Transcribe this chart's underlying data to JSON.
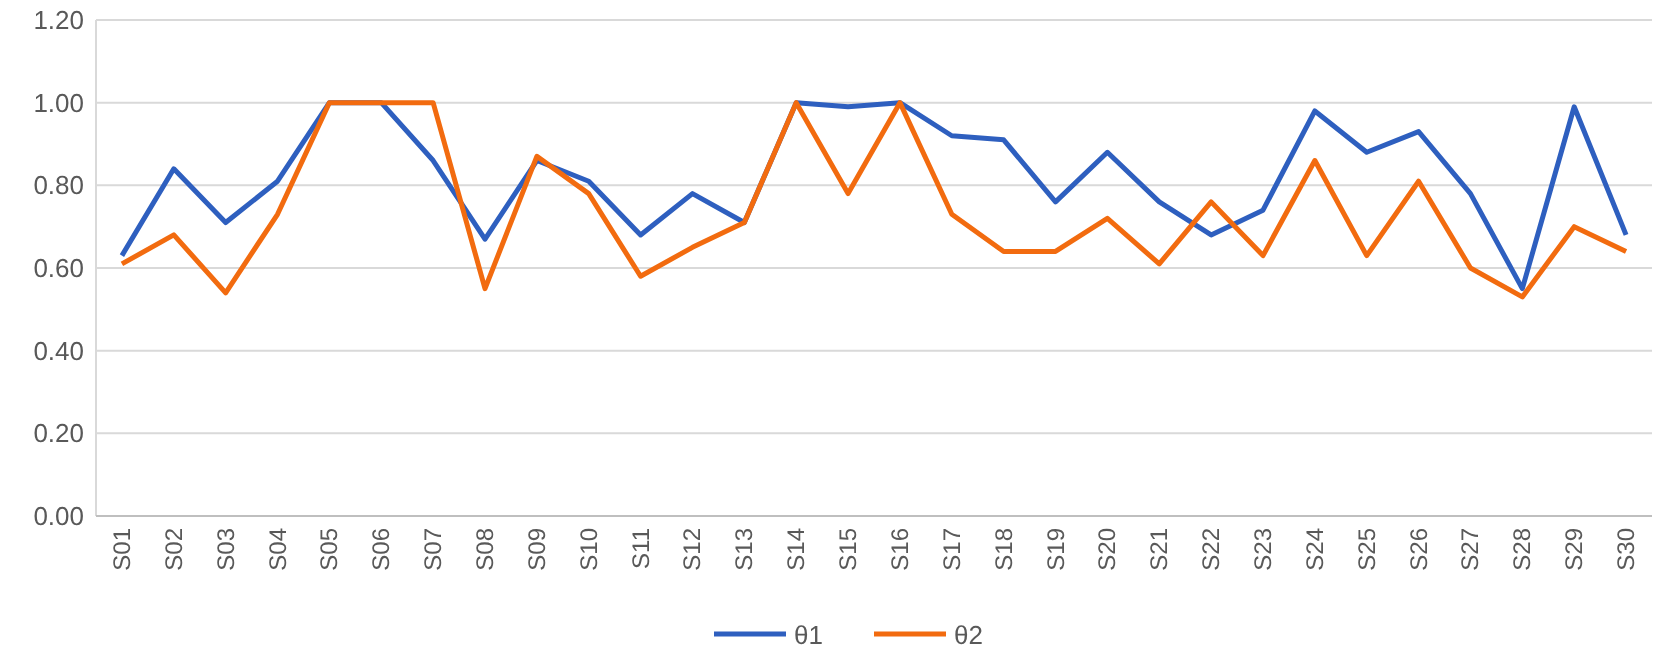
{
  "chart_data": {
    "type": "line",
    "categories": [
      "S01",
      "S02",
      "S03",
      "S04",
      "S05",
      "S06",
      "S07",
      "S08",
      "S09",
      "S10",
      "S11",
      "S12",
      "S13",
      "S14",
      "S15",
      "S16",
      "S17",
      "S18",
      "S19",
      "S20",
      "S21",
      "S22",
      "S23",
      "S24",
      "S25",
      "S26",
      "S27",
      "S28",
      "S29",
      "S30"
    ],
    "series": [
      {
        "name": "θ1",
        "color": "#2e5fbf",
        "values": [
          0.63,
          0.84,
          0.71,
          0.81,
          1.0,
          1.0,
          0.86,
          0.67,
          0.86,
          0.81,
          0.68,
          0.78,
          0.71,
          1.0,
          0.99,
          1.0,
          0.92,
          0.91,
          0.76,
          0.88,
          0.76,
          0.68,
          0.74,
          0.98,
          0.88,
          0.93,
          0.78,
          0.55,
          0.99,
          0.68
        ]
      },
      {
        "name": "θ2",
        "color": "#f26b0f",
        "values": [
          0.61,
          0.68,
          0.54,
          0.73,
          1.0,
          1.0,
          1.0,
          0.55,
          0.87,
          0.78,
          0.58,
          0.65,
          0.71,
          1.0,
          0.78,
          1.0,
          0.73,
          0.64,
          0.64,
          0.72,
          0.61,
          0.76,
          0.63,
          0.86,
          0.63,
          0.81,
          0.6,
          0.53,
          0.7,
          0.64
        ]
      }
    ],
    "ylim": [
      0,
      1.2
    ],
    "yticks": [
      {
        "value": 0,
        "label": "0.00"
      },
      {
        "value": 0.2,
        "label": "0.20"
      },
      {
        "value": 0.4,
        "label": "0.40"
      },
      {
        "value": 0.6,
        "label": "0.60"
      },
      {
        "value": 0.8,
        "label": "0.80"
      },
      {
        "value": 1,
        "label": "1.00"
      },
      {
        "value": 1.2,
        "label": "1.20"
      }
    ],
    "grid": "y",
    "legend": "bottom",
    "marker": "none",
    "line_style": "solid"
  }
}
